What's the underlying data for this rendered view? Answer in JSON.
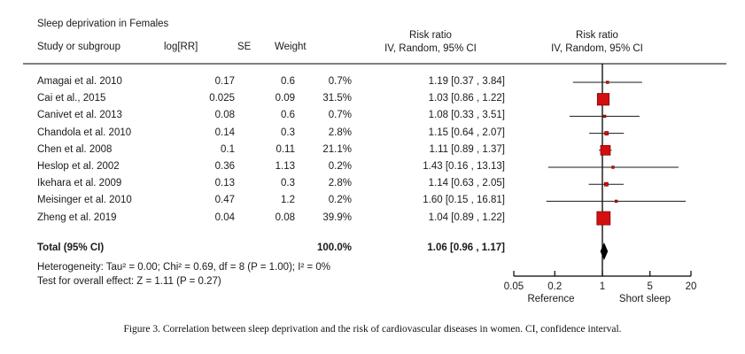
{
  "columns": {
    "study": "Study or subgroup",
    "logrr": "log[RR]",
    "se": "SE",
    "weight": "Weight",
    "risk_ratio": "Risk ratio",
    "method": "IV, Random, 95% CI"
  },
  "footer": {
    "heterogeneity": "Heterogeneity: Tau² = 0.00; Chi² = 0.69, df = 8 (P = 1.00); I² = 0%",
    "overall_effect": "Test for overall effect: Z = 1.11 (P = 0.27)"
  },
  "caption": "Figure 3. Correlation between sleep deprivation and the risk of cardiovascular diseases in women. CI, confidence interval.",
  "colors": {
    "marker": "#d40f0f",
    "marker_border": "#7e0606",
    "diamond": "#000000",
    "ci_line": "#1a1a1a",
    "reference_line": "#000000",
    "separator": "#7f7f7f"
  },
  "chart_data": {
    "type": "forest",
    "title": "Sleep deprivation in Females",
    "x_scale": "log",
    "x_range": [
      0.05,
      20
    ],
    "x_ticks": [
      "0.05",
      "0.2",
      "1",
      "5",
      "20"
    ],
    "reference_value": 1,
    "axis_left_label": "Reference",
    "axis_right_label": "Short sleep",
    "effect_label": "Risk ratio",
    "model": "IV, Random, 95% CI",
    "studies": [
      {
        "name": "Amagai et al. 2010",
        "log_rr": "0.17",
        "se": "0.6",
        "weight_pct": 0.7,
        "weight_text": "0.7%",
        "rr": 1.19,
        "ci_low": 0.37,
        "ci_high": 3.84,
        "ci_text": "1.19 [0.37 , 3.84]"
      },
      {
        "name": "Cai et al., 2015",
        "log_rr": "0.025",
        "se": "0.09",
        "weight_pct": 31.5,
        "weight_text": "31.5%",
        "rr": 1.03,
        "ci_low": 0.86,
        "ci_high": 1.22,
        "ci_text": "1.03 [0.86 , 1.22]"
      },
      {
        "name": "Canivet et al. 2013",
        "log_rr": "0.08",
        "se": "0.6",
        "weight_pct": 0.7,
        "weight_text": "0.7%",
        "rr": 1.08,
        "ci_low": 0.33,
        "ci_high": 3.51,
        "ci_text": "1.08 [0.33 , 3.51]"
      },
      {
        "name": "Chandola et al. 2010",
        "log_rr": "0.14",
        "se": "0.3",
        "weight_pct": 2.8,
        "weight_text": "2.8%",
        "rr": 1.15,
        "ci_low": 0.64,
        "ci_high": 2.07,
        "ci_text": "1.15 [0.64 , 2.07]"
      },
      {
        "name": "Chen et al. 2008",
        "log_rr": "0.1",
        "se": "0.11",
        "weight_pct": 21.1,
        "weight_text": "21.1%",
        "rr": 1.11,
        "ci_low": 0.89,
        "ci_high": 1.37,
        "ci_text": "1.11 [0.89 , 1.37]"
      },
      {
        "name": "Heslop et al. 2002",
        "log_rr": "0.36",
        "se": "1.13",
        "weight_pct": 0.2,
        "weight_text": "0.2%",
        "rr": 1.43,
        "ci_low": 0.16,
        "ci_high": 13.13,
        "ci_text": "1.43 [0.16 , 13.13]"
      },
      {
        "name": "Ikehara et al. 2009",
        "log_rr": "0.13",
        "se": "0.3",
        "weight_pct": 2.8,
        "weight_text": "2.8%",
        "rr": 1.14,
        "ci_low": 0.63,
        "ci_high": 2.05,
        "ci_text": "1.14 [0.63 , 2.05]"
      },
      {
        "name": "Meisinger et al. 2010",
        "log_rr": "0.47",
        "se": "1.2",
        "weight_pct": 0.2,
        "weight_text": "0.2%",
        "rr": 1.6,
        "ci_low": 0.15,
        "ci_high": 16.81,
        "ci_text": "1.60 [0.15 , 16.81]"
      },
      {
        "name": "Zheng et al. 2019",
        "log_rr": "0.04",
        "se": "0.08",
        "weight_pct": 39.9,
        "weight_text": "39.9%",
        "rr": 1.04,
        "ci_low": 0.89,
        "ci_high": 1.22,
        "ci_text": "1.04 [0.89 , 1.22]"
      }
    ],
    "total": {
      "label": "Total (95% CI)",
      "weight_text": "100.0%",
      "rr": 1.06,
      "ci_low": 0.96,
      "ci_high": 1.17,
      "ci_text": "1.06 [0.96 , 1.17]"
    }
  }
}
